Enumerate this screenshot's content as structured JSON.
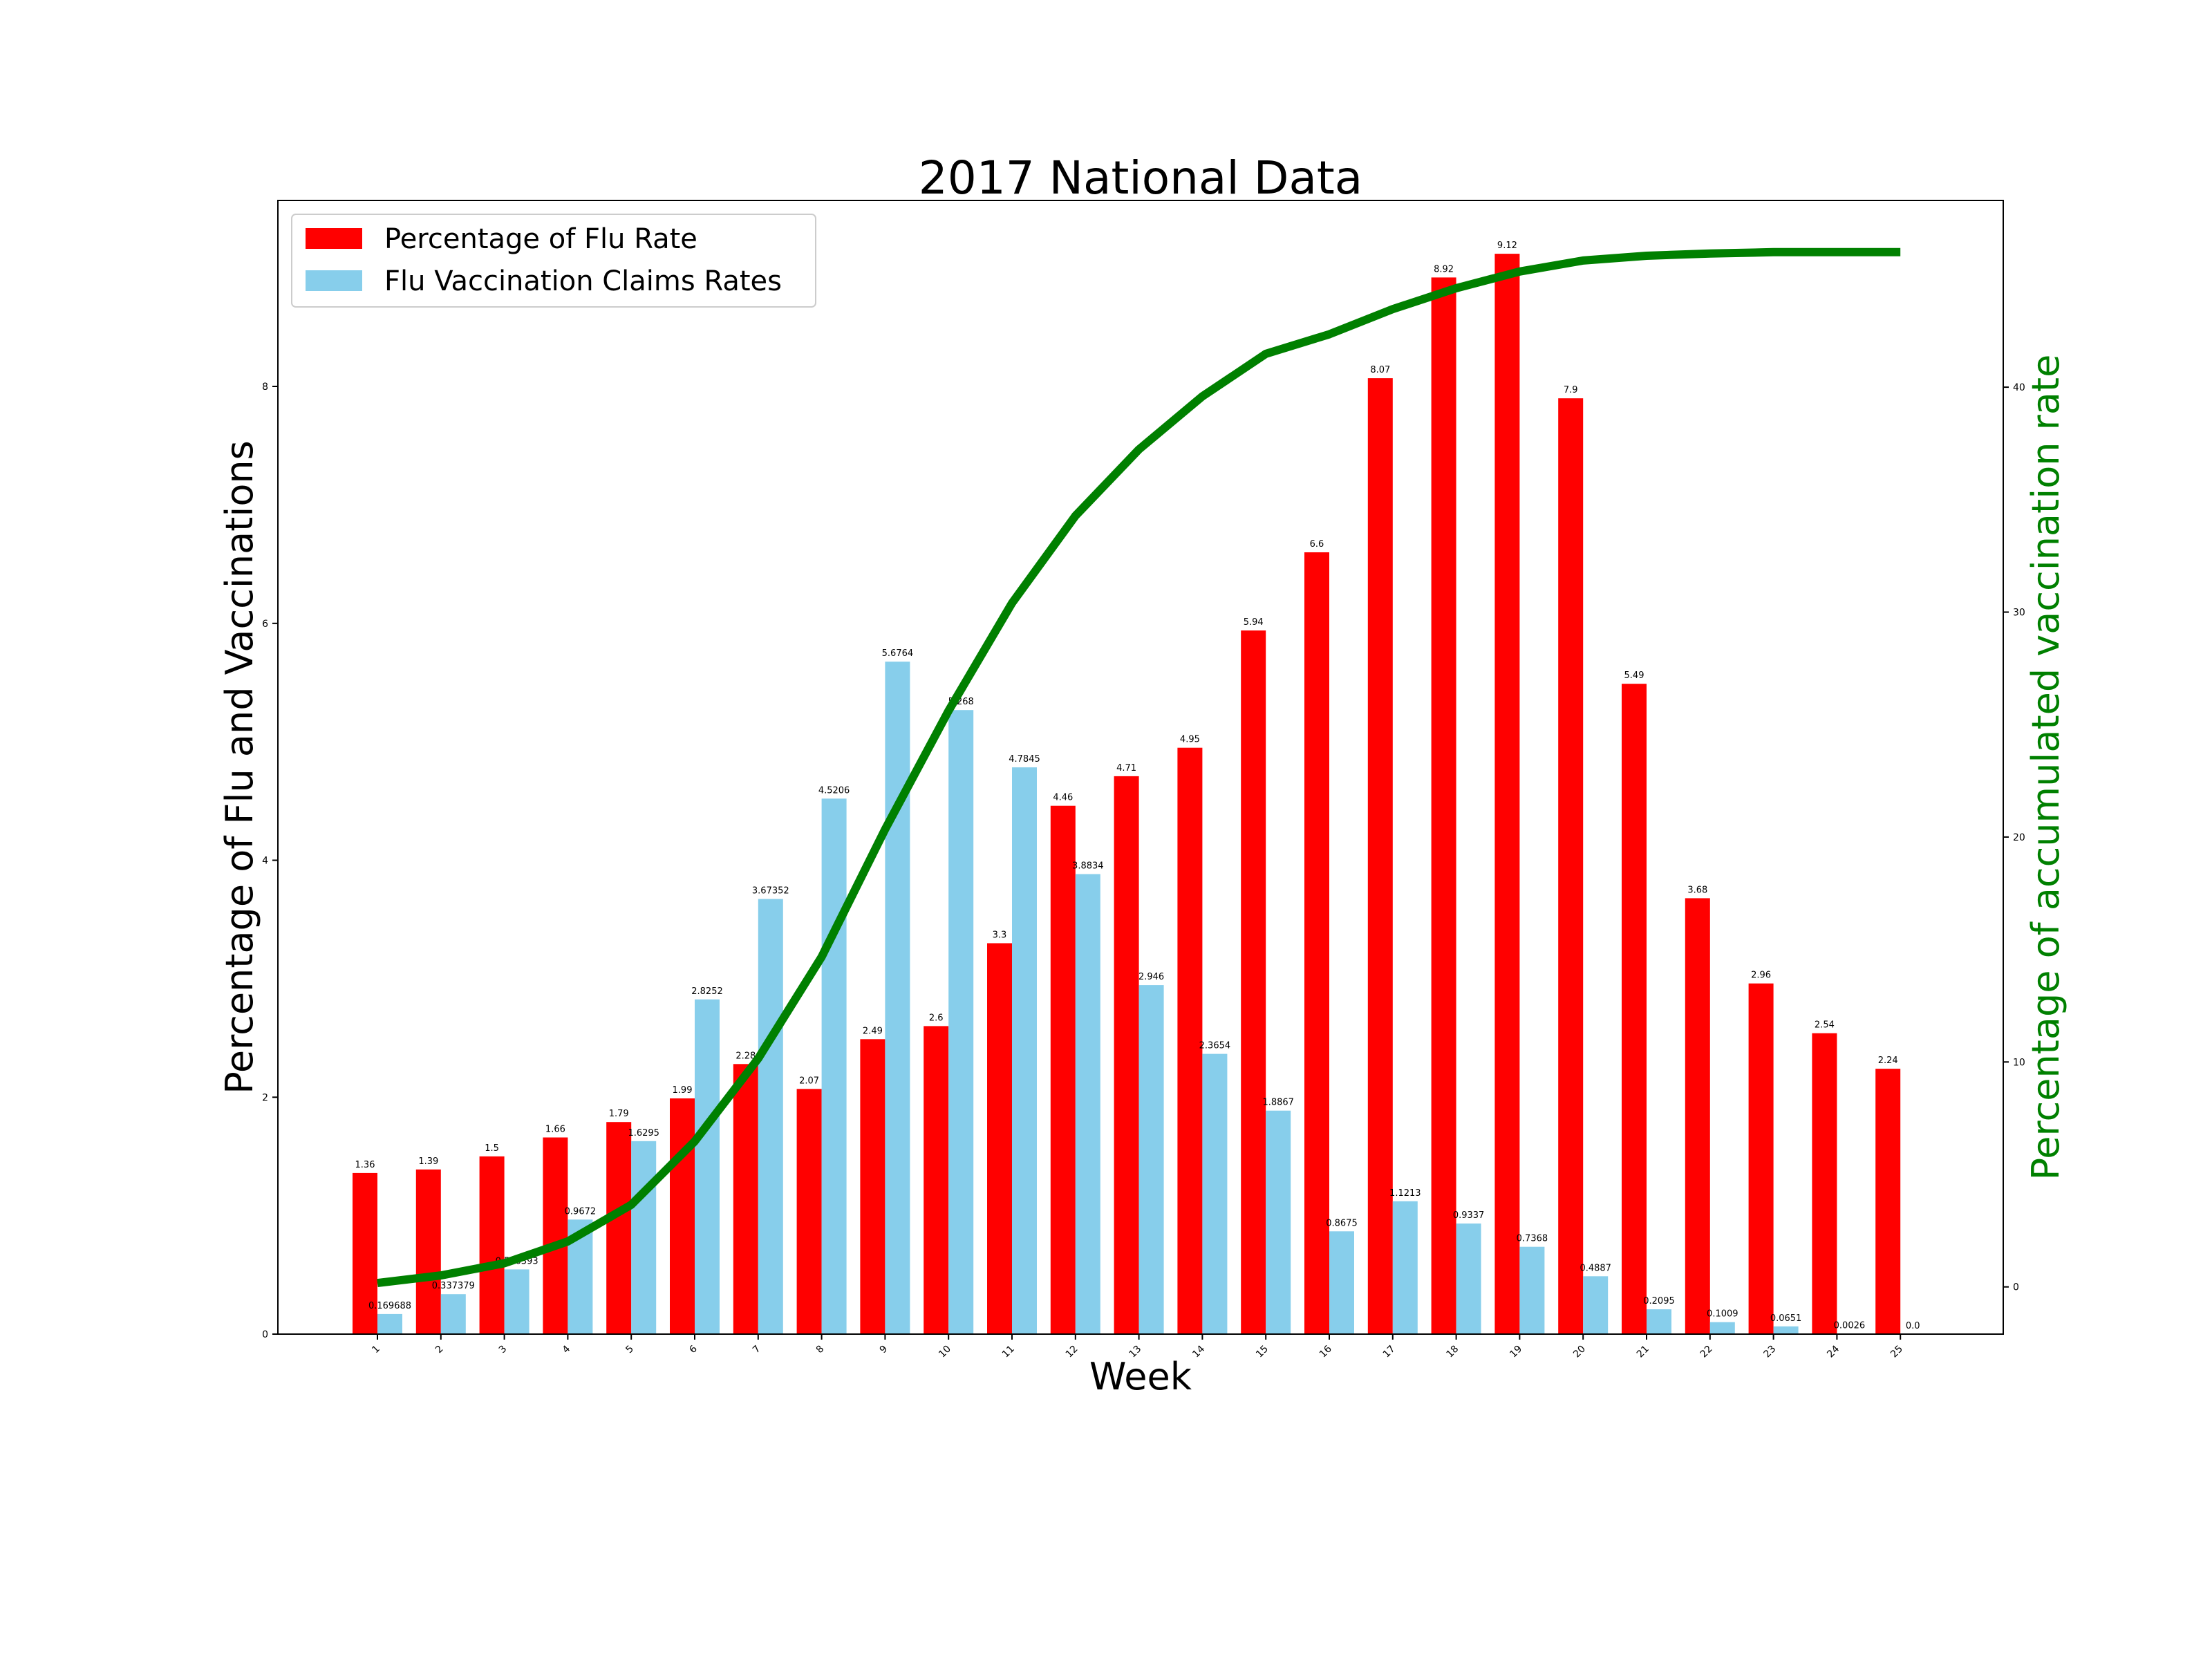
{
  "chart_data": {
    "type": "bar",
    "title": "2017 National Data",
    "xlabel": "Week",
    "ylabel": "Percentage of Flu and Vaccinations",
    "y2label": "Percentage of accumulated vaccination rate",
    "categories": [
      "1",
      "2",
      "3",
      "4",
      "5",
      "6",
      "7",
      "8",
      "9",
      "10",
      "11",
      "12",
      "13",
      "14",
      "15",
      "16",
      "17",
      "18",
      "19",
      "20",
      "21",
      "22",
      "23",
      "24",
      "25"
    ],
    "ylim": [
      0,
      9.57
    ],
    "y2lim": [
      -2.1,
      48.3
    ],
    "yticks": [
      "0",
      "2",
      "4",
      "6",
      "8"
    ],
    "y2ticks": [
      "0",
      "10",
      "20",
      "30",
      "40"
    ],
    "grid": false,
    "legend_position": "top-left",
    "series": [
      {
        "name": "Percentage of Flu Rate",
        "type": "bar",
        "color": "#ff0000",
        "values": [
          1.36,
          1.39,
          1.5,
          1.66,
          1.79,
          1.99,
          2.28,
          2.07,
          2.49,
          2.6,
          3.3,
          4.46,
          4.71,
          4.95,
          5.94,
          6.6,
          8.07,
          8.92,
          9.12,
          7.9,
          5.49,
          3.68,
          2.96,
          2.54,
          2.24
        ],
        "labels": [
          "1.36",
          "1.39",
          "1.5",
          "1.66",
          "1.79",
          "1.99",
          "2.28",
          "2.07",
          "2.49",
          "2.6",
          "3.3",
          "4.46",
          "4.71",
          "4.95",
          "5.94",
          "6.6",
          "8.07",
          "8.92",
          "9.12",
          "7.9",
          "5.49",
          "3.68",
          "2.96",
          "2.54",
          "2.24"
        ]
      },
      {
        "name": "Flu Vaccination Claims Rates",
        "type": "bar",
        "color": "#87ceeb",
        "values": [
          0.169688,
          0.337379,
          0.546393,
          0.9672,
          1.6295,
          2.8252,
          3.67352,
          4.5206,
          5.6764,
          5.268,
          4.7845,
          3.8834,
          2.946,
          2.3654,
          1.8867,
          0.8675,
          1.1213,
          0.9337,
          0.7368,
          0.4887,
          0.2095,
          0.1009,
          0.0651,
          0.0026,
          0.0
        ],
        "labels": [
          "0.169688",
          "0.337379",
          "0.546393",
          "0.9672",
          "1.6295",
          "2.8252",
          "3.67352",
          "4.5206",
          "5.6764",
          "5.268",
          "4.7845",
          "3.8834",
          "2.946",
          "2.3654",
          "1.8867",
          "0.8675",
          "1.1213",
          "0.9337",
          "0.7368",
          "0.4887",
          "0.2095",
          "0.1009",
          "0.0651",
          "0.0026",
          "0.0"
        ]
      },
      {
        "name": "Accumulated vaccination rate",
        "type": "line",
        "axis": "right",
        "color": "#008000",
        "values": [
          0.17,
          0.51,
          1.05,
          2.02,
          3.65,
          6.47,
          10.15,
          14.67,
          20.34,
          25.61,
          30.4,
          34.28,
          37.23,
          39.59,
          41.48,
          42.35,
          43.47,
          44.4,
          45.14,
          45.63,
          45.84,
          45.94,
          46.0,
          46.0,
          46.0
        ]
      }
    ]
  }
}
